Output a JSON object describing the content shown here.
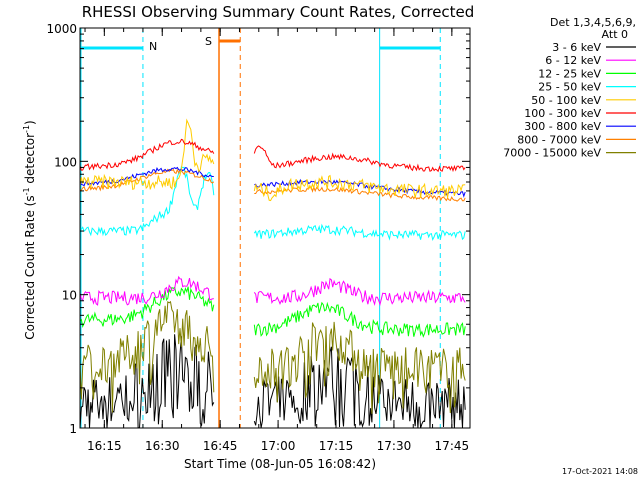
{
  "chart_data": {
    "type": "line",
    "title": "RHESSI Observing Summary Count Rates, Corrected",
    "xlabel": "Start Time (08-Jun-05 16:08:42)",
    "ylabel_main": "Corrected Count Rate (s",
    "ylabel_sup1": "-1",
    "ylabel_mid": " detector",
    "ylabel_sup2": "-1",
    "ylabel_end": ")",
    "yscale": "log",
    "ylim": [
      1,
      1000
    ],
    "y_ticks": [
      {
        "v": 1,
        "label": "1"
      },
      {
        "v": 10,
        "label": "10"
      },
      {
        "v": 100,
        "label": "100"
      },
      {
        "v": 1000,
        "label": "1000"
      }
    ],
    "x_range_min": [
      0,
      101
    ],
    "x_ticks": [
      {
        "v": 6.3,
        "label": "16:15"
      },
      {
        "v": 21.3,
        "label": "16:30"
      },
      {
        "v": 36.3,
        "label": "16:45"
      },
      {
        "v": 51.3,
        "label": "17:00"
      },
      {
        "v": 66.3,
        "label": "17:15"
      },
      {
        "v": 81.3,
        "label": "17:30"
      },
      {
        "v": 96.3,
        "label": "17:45"
      }
    ],
    "legend_header": [
      "Det 1,3,4,5,6,9,",
      "Att 0"
    ],
    "series": [
      {
        "name": "3 - 6 keV",
        "color": "#000000"
      },
      {
        "name": "6 - 12 keV",
        "color": "#ff00ff"
      },
      {
        "name": "12 - 25 keV",
        "color": "#00ff00"
      },
      {
        "name": "25 - 50 keV",
        "color": "#00ffff"
      },
      {
        "name": "50 - 100 keV",
        "color": "#ffcc00"
      },
      {
        "name": "100 - 300 keV",
        "color": "#ff0000"
      },
      {
        "name": "300 - 800 keV",
        "color": "#0000ff"
      },
      {
        "name": "800 - 7000 keV",
        "color": "#ff8000"
      },
      {
        "name": "7000 - 15000 keV",
        "color": "#808000"
      }
    ],
    "annotations": {
      "night_label": "N",
      "saa_label": "S",
      "night_intervals_min": [
        [
          -1.5,
          16.3
        ],
        [
          77.6,
          93.3
        ]
      ],
      "saa_interval_min": [
        36.0,
        41.5
      ],
      "data_gaps_min": [
        [
          35.0,
          45.0
        ]
      ]
    },
    "footer": "17-Oct-2021 14:08"
  }
}
